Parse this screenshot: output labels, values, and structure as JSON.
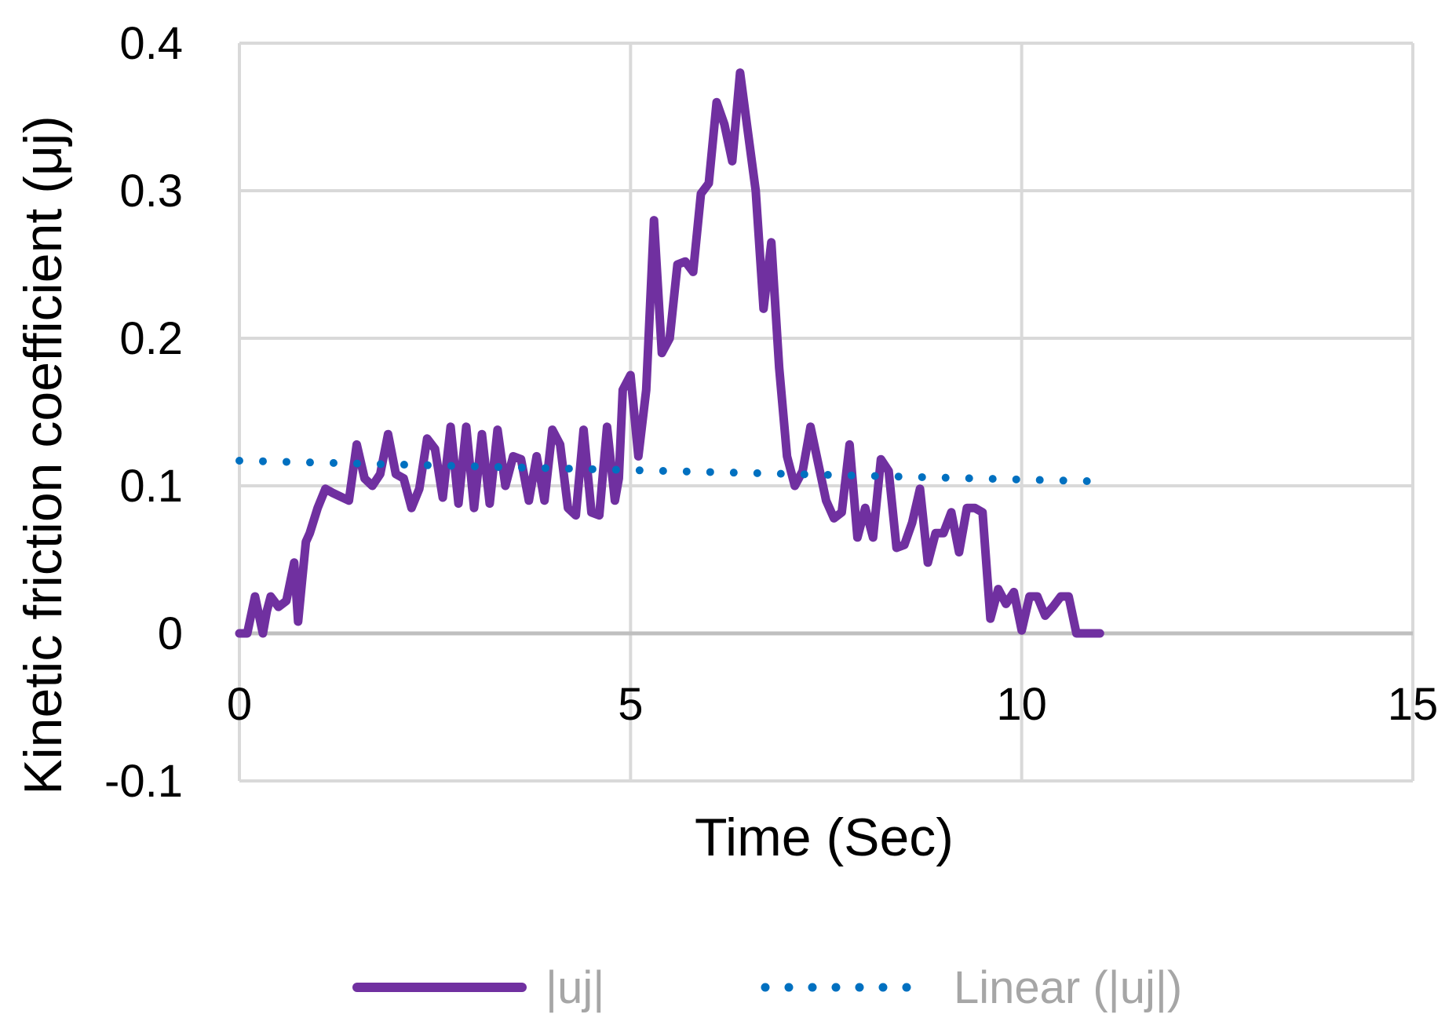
{
  "chart_data": {
    "type": "line",
    "title": "",
    "xlabel": "Time (Sec)",
    "ylabel": "Kinetic friction coefficient (μj)",
    "xlim": [
      0,
      15
    ],
    "ylim": [
      -0.1,
      0.4
    ],
    "x_ticks": [
      "0",
      "5",
      "10",
      "15"
    ],
    "y_ticks": [
      "-0.1",
      "0",
      "0.1",
      "0.2",
      "0.3",
      "0.4"
    ],
    "x_tick_values": [
      0,
      5,
      10,
      15
    ],
    "y_tick_values": [
      -0.1,
      0,
      0.1,
      0.2,
      0.3,
      0.4
    ],
    "grid": true,
    "legend_position": "bottom",
    "series": [
      {
        "name": "|uj|",
        "color": "#7030a0",
        "style": "solid",
        "x": [
          0,
          0.1,
          0.2,
          0.3,
          0.35,
          0.4,
          0.5,
          0.6,
          0.7,
          0.75,
          0.8,
          0.85,
          0.9,
          1.0,
          1.1,
          1.2,
          1.4,
          1.5,
          1.6,
          1.7,
          1.8,
          1.9,
          2.0,
          2.1,
          2.2,
          2.3,
          2.4,
          2.5,
          2.6,
          2.7,
          2.8,
          2.9,
          3.0,
          3.1,
          3.2,
          3.3,
          3.4,
          3.5,
          3.6,
          3.7,
          3.8,
          3.9,
          4.0,
          4.1,
          4.2,
          4.3,
          4.4,
          4.5,
          4.6,
          4.7,
          4.8,
          4.85,
          4.9,
          5.0,
          5.1,
          5.2,
          5.3,
          5.4,
          5.5,
          5.6,
          5.7,
          5.8,
          5.9,
          6.0,
          6.1,
          6.2,
          6.3,
          6.4,
          6.5,
          6.6,
          6.7,
          6.8,
          6.9,
          7.0,
          7.1,
          7.2,
          7.3,
          7.4,
          7.5,
          7.6,
          7.7,
          7.8,
          7.9,
          8.0,
          8.1,
          8.2,
          8.3,
          8.4,
          8.5,
          8.6,
          8.7,
          8.8,
          8.9,
          9.0,
          9.1,
          9.2,
          9.3,
          9.4,
          9.5,
          9.6,
          9.7,
          9.8,
          9.9,
          10.0,
          10.1,
          10.2,
          10.3,
          10.4,
          10.5,
          10.6,
          10.7,
          10.8,
          10.9,
          11.0
        ],
        "y": [
          0,
          0,
          0.025,
          0,
          0.015,
          0.025,
          0.018,
          0.022,
          0.048,
          0.008,
          0.035,
          0.062,
          0.068,
          0.085,
          0.098,
          0.095,
          0.09,
          0.128,
          0.105,
          0.1,
          0.108,
          0.135,
          0.108,
          0.105,
          0.085,
          0.098,
          0.132,
          0.125,
          0.092,
          0.14,
          0.088,
          0.14,
          0.085,
          0.135,
          0.088,
          0.138,
          0.1,
          0.12,
          0.118,
          0.09,
          0.12,
          0.09,
          0.138,
          0.128,
          0.085,
          0.08,
          0.138,
          0.082,
          0.08,
          0.14,
          0.09,
          0.105,
          0.165,
          0.175,
          0.12,
          0.165,
          0.28,
          0.19,
          0.2,
          0.25,
          0.252,
          0.245,
          0.298,
          0.305,
          0.36,
          0.345,
          0.32,
          0.38,
          0.34,
          0.3,
          0.22,
          0.265,
          0.18,
          0.12,
          0.1,
          0.11,
          0.14,
          0.115,
          0.09,
          0.078,
          0.082,
          0.128,
          0.065,
          0.085,
          0.065,
          0.118,
          0.11,
          0.058,
          0.06,
          0.075,
          0.098,
          0.048,
          0.068,
          0.068,
          0.082,
          0.055,
          0.085,
          0.085,
          0.082,
          0.01,
          0.03,
          0.02,
          0.028,
          0.002,
          0.025,
          0.025,
          0.012,
          0.018,
          0.025,
          0.025,
          0,
          0,
          0,
          0
        ]
      },
      {
        "name": "Linear (|uj|)",
        "color": "#0070c0",
        "style": "dotted",
        "x": [
          0,
          11
        ],
        "y": [
          0.117,
          0.103
        ]
      }
    ]
  }
}
